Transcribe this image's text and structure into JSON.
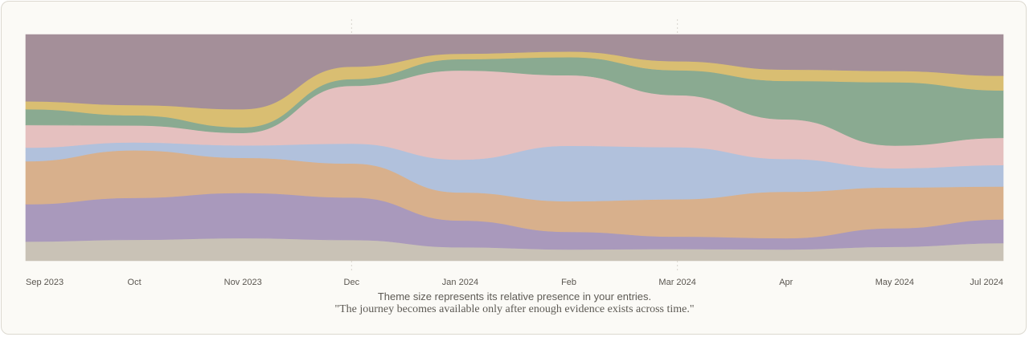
{
  "chart_data": {
    "type": "area",
    "stacked": true,
    "ylim": [
      0,
      1
    ],
    "grid": false,
    "legend": "none",
    "x_tick_labels": [
      "Sep 2023",
      "Oct",
      "Nov 2023",
      "Dec",
      "Jan 2024",
      "Feb",
      "Mar 2024",
      "Apr",
      "May 2024",
      "Jul 2024"
    ],
    "series": [
      {
        "color": "#c9c2b6",
        "values": [
          0.085,
          0.093,
          0.1,
          0.092,
          0.06,
          0.05,
          0.052,
          0.05,
          0.062,
          0.078
        ]
      },
      {
        "color": "#a999bc",
        "values": [
          0.165,
          0.185,
          0.2,
          0.188,
          0.118,
          0.078,
          0.055,
          0.05,
          0.082,
          0.105
        ]
      },
      {
        "color": "#d8b08c",
        "values": [
          0.19,
          0.21,
          0.155,
          0.15,
          0.124,
          0.135,
          0.165,
          0.205,
          0.18,
          0.145
        ]
      },
      {
        "color": "#b1c1dc",
        "values": [
          0.06,
          0.035,
          0.055,
          0.088,
          0.145,
          0.245,
          0.23,
          0.145,
          0.085,
          0.095
        ]
      },
      {
        "color": "#e5c0bf",
        "values": [
          0.1,
          0.075,
          0.055,
          0.255,
          0.394,
          0.312,
          0.23,
          0.175,
          0.1,
          0.12
        ]
      },
      {
        "color": "#8aaa91",
        "values": [
          0.07,
          0.045,
          0.025,
          0.03,
          0.05,
          0.08,
          0.11,
          0.17,
          0.28,
          0.21
        ]
      },
      {
        "color": "#d9be72",
        "values": [
          0.035,
          0.045,
          0.08,
          0.055,
          0.024,
          0.025,
          0.04,
          0.05,
          0.05,
          0.065
        ]
      },
      {
        "color": "#a48f99",
        "values": [
          0.295,
          0.312,
          0.33,
          0.142,
          0.085,
          0.075,
          0.118,
          0.155,
          0.161,
          0.182
        ]
      }
    ]
  },
  "captions": {
    "line1": "Theme size represents its relative presence in your entries.",
    "line2": "\"The journey becomes available only after enough evidence exists across time.\""
  }
}
